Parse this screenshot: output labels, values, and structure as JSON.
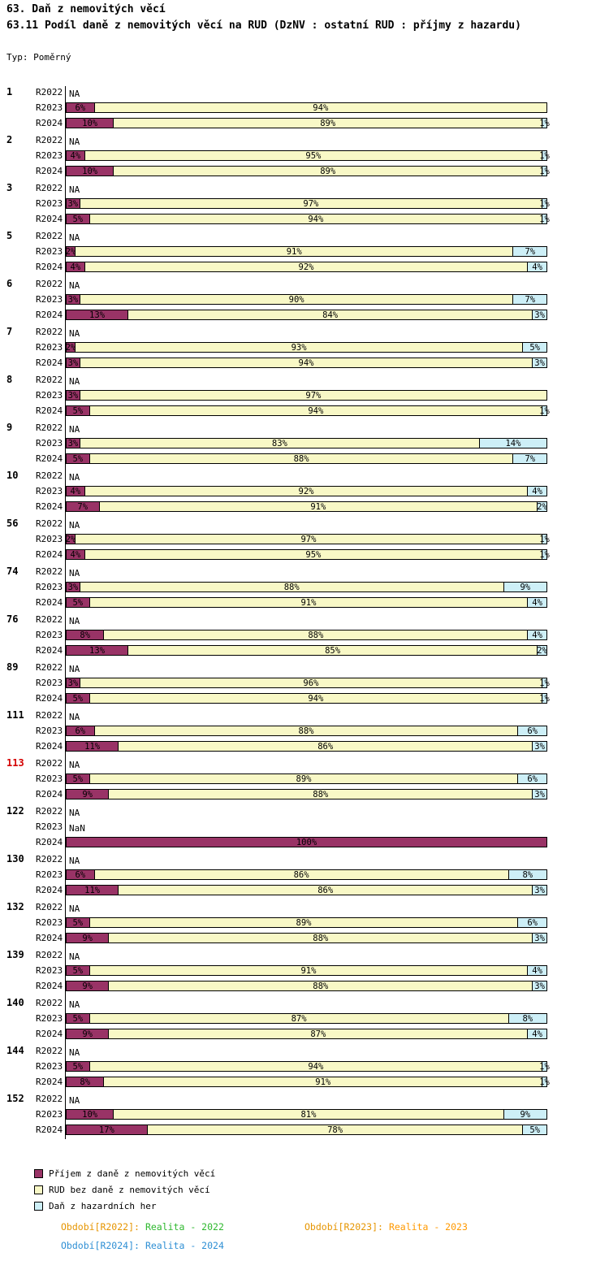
{
  "header": {
    "title": "63. Daň z nemovitých věcí",
    "subtitle": "63.11 Podíl daně z nemovitých věcí na RUD (DzNV : ostatní RUD : příjmy z hazardu)",
    "type_label": "Typ: Poměrný"
  },
  "chart_data": {
    "type": "bar",
    "orientation": "horizontal",
    "stacked": true,
    "unit": "%",
    "xlim": [
      0,
      100
    ],
    "period_labels": [
      "R2022",
      "R2023",
      "R2024"
    ],
    "series_names": [
      "Příjem z daně z nemovitých věcí",
      "RUD bez daně z nemovitých věcí",
      "Daň z hazardních her"
    ],
    "series_keys": [
      "dznv",
      "rud",
      "hazard"
    ],
    "colors": [
      "#993366",
      "#F8F8C6",
      "#CDEFF7"
    ],
    "missing_value_text": "NA",
    "groups": [
      {
        "id": "1",
        "rows": [
          {
            "period": "R2022",
            "text": "NA"
          },
          {
            "period": "R2023",
            "values": [
              6,
              94,
              0
            ]
          },
          {
            "period": "R2024",
            "values": [
              10,
              89,
              1
            ]
          }
        ]
      },
      {
        "id": "2",
        "rows": [
          {
            "period": "R2022",
            "text": "NA"
          },
          {
            "period": "R2023",
            "values": [
              4,
              95,
              1
            ]
          },
          {
            "period": "R2024",
            "values": [
              10,
              89,
              1
            ]
          }
        ]
      },
      {
        "id": "3",
        "rows": [
          {
            "period": "R2022",
            "text": "NA"
          },
          {
            "period": "R2023",
            "values": [
              3,
              97,
              1
            ]
          },
          {
            "period": "R2024",
            "values": [
              5,
              94,
              1
            ]
          }
        ]
      },
      {
        "id": "5",
        "rows": [
          {
            "period": "R2022",
            "text": "NA"
          },
          {
            "period": "R2023",
            "values": [
              2,
              91,
              7
            ]
          },
          {
            "period": "R2024",
            "values": [
              4,
              92,
              4
            ]
          }
        ]
      },
      {
        "id": "6",
        "rows": [
          {
            "period": "R2022",
            "text": "NA"
          },
          {
            "period": "R2023",
            "values": [
              3,
              90,
              7
            ]
          },
          {
            "period": "R2024",
            "values": [
              13,
              84,
              3
            ]
          }
        ]
      },
      {
        "id": "7",
        "rows": [
          {
            "period": "R2022",
            "text": "NA"
          },
          {
            "period": "R2023",
            "values": [
              2,
              93,
              5
            ]
          },
          {
            "period": "R2024",
            "values": [
              3,
              94,
              3
            ]
          }
        ]
      },
      {
        "id": "8",
        "rows": [
          {
            "period": "R2022",
            "text": "NA"
          },
          {
            "period": "R2023",
            "values": [
              3,
              97,
              0
            ]
          },
          {
            "period": "R2024",
            "values": [
              5,
              94,
              1
            ]
          }
        ]
      },
      {
        "id": "9",
        "rows": [
          {
            "period": "R2022",
            "text": "NA"
          },
          {
            "period": "R2023",
            "values": [
              3,
              83,
              14
            ]
          },
          {
            "period": "R2024",
            "values": [
              5,
              88,
              7
            ]
          }
        ]
      },
      {
        "id": "10",
        "rows": [
          {
            "period": "R2022",
            "text": "NA"
          },
          {
            "period": "R2023",
            "values": [
              4,
              92,
              4
            ]
          },
          {
            "period": "R2024",
            "values": [
              7,
              91,
              2
            ]
          }
        ]
      },
      {
        "id": "56",
        "rows": [
          {
            "period": "R2022",
            "text": "NA"
          },
          {
            "period": "R2023",
            "values": [
              2,
              97,
              1
            ]
          },
          {
            "period": "R2024",
            "values": [
              4,
              95,
              1
            ]
          }
        ]
      },
      {
        "id": "74",
        "rows": [
          {
            "period": "R2022",
            "text": "NA"
          },
          {
            "period": "R2023",
            "values": [
              3,
              88,
              9
            ]
          },
          {
            "period": "R2024",
            "values": [
              5,
              91,
              4
            ]
          }
        ]
      },
      {
        "id": "76",
        "rows": [
          {
            "period": "R2022",
            "text": "NA"
          },
          {
            "period": "R2023",
            "values": [
              8,
              88,
              4
            ]
          },
          {
            "period": "R2024",
            "values": [
              13,
              85,
              2
            ]
          }
        ]
      },
      {
        "id": "89",
        "rows": [
          {
            "period": "R2022",
            "text": "NA"
          },
          {
            "period": "R2023",
            "values": [
              3,
              96,
              1
            ]
          },
          {
            "period": "R2024",
            "values": [
              5,
              94,
              1
            ]
          }
        ]
      },
      {
        "id": "111",
        "rows": [
          {
            "period": "R2022",
            "text": "NA"
          },
          {
            "period": "R2023",
            "values": [
              6,
              88,
              6
            ]
          },
          {
            "period": "R2024",
            "values": [
              11,
              86,
              3
            ]
          }
        ]
      },
      {
        "id": "113",
        "highlight": true,
        "rows": [
          {
            "period": "R2022",
            "text": "NA"
          },
          {
            "period": "R2023",
            "values": [
              5,
              89,
              6
            ]
          },
          {
            "period": "R2024",
            "values": [
              9,
              88,
              3
            ]
          }
        ]
      },
      {
        "id": "122",
        "rows": [
          {
            "period": "R2022",
            "text": "NA"
          },
          {
            "period": "R2023",
            "text": "NaN"
          },
          {
            "period": "R2024",
            "values": [
              100,
              0,
              0
            ]
          }
        ]
      },
      {
        "id": "130",
        "rows": [
          {
            "period": "R2022",
            "text": "NA"
          },
          {
            "period": "R2023",
            "values": [
              6,
              86,
              8
            ]
          },
          {
            "period": "R2024",
            "values": [
              11,
              86,
              3
            ]
          }
        ]
      },
      {
        "id": "132",
        "rows": [
          {
            "period": "R2022",
            "text": "NA"
          },
          {
            "period": "R2023",
            "values": [
              5,
              89,
              6
            ]
          },
          {
            "period": "R2024",
            "values": [
              9,
              88,
              3
            ]
          }
        ]
      },
      {
        "id": "139",
        "rows": [
          {
            "period": "R2022",
            "text": "NA"
          },
          {
            "period": "R2023",
            "values": [
              5,
              91,
              4
            ]
          },
          {
            "period": "R2024",
            "values": [
              9,
              88,
              3
            ]
          }
        ]
      },
      {
        "id": "140",
        "rows": [
          {
            "period": "R2022",
            "text": "NA"
          },
          {
            "period": "R2023",
            "values": [
              5,
              87,
              8
            ]
          },
          {
            "period": "R2024",
            "values": [
              9,
              87,
              4
            ]
          }
        ]
      },
      {
        "id": "144",
        "rows": [
          {
            "period": "R2022",
            "text": "NA"
          },
          {
            "period": "R2023",
            "values": [
              5,
              94,
              1
            ]
          },
          {
            "period": "R2024",
            "values": [
              8,
              91,
              1
            ]
          }
        ]
      },
      {
        "id": "152",
        "rows": [
          {
            "period": "R2022",
            "text": "NA"
          },
          {
            "period": "R2023",
            "values": [
              10,
              81,
              9
            ]
          },
          {
            "period": "R2024",
            "values": [
              17,
              78,
              5
            ]
          }
        ]
      }
    ]
  },
  "legend": {
    "items": [
      {
        "label": "Příjem z daně z nemovitých věcí",
        "color": "#993366"
      },
      {
        "label": "RUD bez daně z nemovitých věcí",
        "color": "#F8F8C6"
      },
      {
        "label": "Daň z hazardních her",
        "color": "#CDEFF7"
      }
    ]
  },
  "footer": {
    "items": [
      {
        "label": "Období[R2022]:",
        "value": "Realita - 2022",
        "label_color": "#E69500",
        "value_color": "#2EB82E"
      },
      {
        "label": "Období[R2023]:",
        "value": "Realita - 2023",
        "label_color": "#E69500",
        "value_color": "#FF9900"
      },
      {
        "label": "Období[R2024]:",
        "value": "Realita - 2024",
        "label_color": "#2E8FD4",
        "value_color": "#2E8FD4"
      }
    ]
  },
  "colors": {
    "highlight_group_id": "#D40000",
    "bar_border": "#000000"
  }
}
